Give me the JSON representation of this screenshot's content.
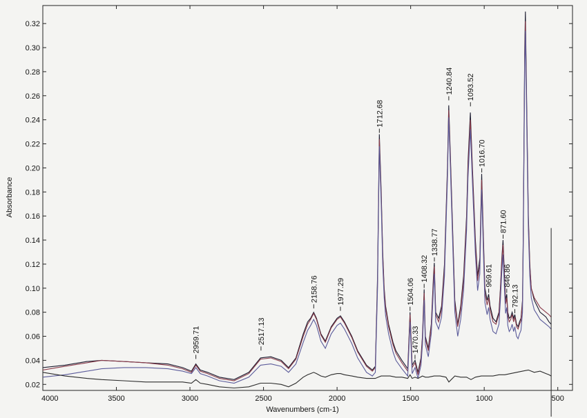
{
  "chart_data": {
    "type": "line",
    "title": "",
    "xlabel": "Wavenumbers (cm-1)",
    "ylabel": "Absorbance",
    "xlim": [
      4000,
      400
    ],
    "ylim": [
      0.015,
      0.335
    ],
    "x_reversed": true,
    "grid": false,
    "legend": "none",
    "x_ticks": [
      4000,
      3500,
      3000,
      2500,
      2000,
      1500,
      1000,
      500
    ],
    "x_tick_labels": [
      "4000",
      "3500",
      "3000",
      "2500",
      "2000",
      "1500",
      "1000",
      "500"
    ],
    "y_ticks": [
      0.02,
      0.04,
      0.06,
      0.08,
      0.1,
      0.12,
      0.14,
      0.16,
      0.18,
      0.2,
      0.22,
      0.24,
      0.26,
      0.28,
      0.3,
      0.32
    ],
    "y_tick_labels": [
      "0.02",
      "0.04",
      "0.06",
      "0.08",
      "0.10",
      "0.12",
      "0.14",
      "0.16",
      "0.18",
      "0.20",
      "0.22",
      "0.24",
      "0.26",
      "0.28",
      "0.30",
      "0.32"
    ],
    "peak_labels": [
      {
        "x": 2959.71,
        "text": "2959.71",
        "y": 0.04
      },
      {
        "x": 2517.13,
        "text": "2517.13",
        "y": 0.047
      },
      {
        "x": 2158.76,
        "text": "2158.76",
        "y": 0.082
      },
      {
        "x": 1977.29,
        "text": "1977.29",
        "y": 0.08
      },
      {
        "x": 1712.68,
        "text": "1712.68",
        "y": 0.228
      },
      {
        "x": 1504.06,
        "text": "1504.06",
        "y": 0.08
      },
      {
        "x": 1470.33,
        "text": "1470.33",
        "y": 0.04
      },
      {
        "x": 1408.32,
        "text": "1408.32",
        "y": 0.099
      },
      {
        "x": 1338.77,
        "text": "1338.77",
        "y": 0.121
      },
      {
        "x": 1240.84,
        "text": "1240.84",
        "y": 0.255
      },
      {
        "x": 1093.52,
        "text": "1093.52",
        "y": 0.25
      },
      {
        "x": 1016.7,
        "text": "1016.70",
        "y": 0.195
      },
      {
        "x": 969.61,
        "text": "969.61",
        "y": 0.095
      },
      {
        "x": 871.6,
        "text": "871.60",
        "y": 0.14
      },
      {
        "x": 846.86,
        "text": "846.86",
        "y": 0.095
      },
      {
        "x": 792.13,
        "text": "792.13",
        "y": 0.078
      }
    ],
    "series": [
      {
        "color": "#1a1a2e",
        "x": [
          4000,
          3850,
          3700,
          3600,
          3450,
          3300,
          3150,
          3050,
          2990,
          2960,
          2930,
          2880,
          2800,
          2700,
          2600,
          2520,
          2450,
          2380,
          2330,
          2280,
          2230,
          2200,
          2180,
          2159,
          2140,
          2110,
          2080,
          2040,
          2000,
          1977,
          1950,
          1900,
          1860,
          1800,
          1760,
          1740,
          1725,
          1713,
          1700,
          1690,
          1680,
          1670,
          1650,
          1620,
          1600,
          1560,
          1520,
          1504,
          1490,
          1470,
          1450,
          1430,
          1420,
          1408,
          1400,
          1380,
          1360,
          1345,
          1339,
          1330,
          1310,
          1290,
          1270,
          1250,
          1241,
          1230,
          1215,
          1200,
          1180,
          1160,
          1140,
          1120,
          1110,
          1094,
          1080,
          1060,
          1045,
          1030,
          1017,
          1005,
          995,
          980,
          970,
          960,
          940,
          920,
          900,
          890,
          880,
          872,
          862,
          855,
          847,
          840,
          830,
          820,
          810,
          800,
          792,
          780,
          770,
          760,
          750,
          740,
          735,
          730,
          725,
          720,
          710,
          700,
          690,
          680,
          660,
          640,
          620,
          600,
          580,
          560,
          545
        ],
        "y": [
          0.034,
          0.036,
          0.039,
          0.04,
          0.039,
          0.038,
          0.037,
          0.034,
          0.031,
          0.037,
          0.032,
          0.03,
          0.026,
          0.024,
          0.03,
          0.042,
          0.043,
          0.04,
          0.034,
          0.042,
          0.062,
          0.072,
          0.075,
          0.08,
          0.075,
          0.062,
          0.056,
          0.068,
          0.075,
          0.077,
          0.072,
          0.06,
          0.048,
          0.036,
          0.032,
          0.035,
          0.11,
          0.228,
          0.18,
          0.13,
          0.1,
          0.085,
          0.07,
          0.055,
          0.048,
          0.04,
          0.033,
          0.08,
          0.036,
          0.04,
          0.03,
          0.042,
          0.06,
          0.099,
          0.06,
          0.05,
          0.07,
          0.11,
          0.121,
          0.08,
          0.075,
          0.085,
          0.12,
          0.2,
          0.252,
          0.21,
          0.15,
          0.09,
          0.07,
          0.085,
          0.11,
          0.16,
          0.205,
          0.246,
          0.2,
          0.14,
          0.11,
          0.125,
          0.195,
          0.14,
          0.1,
          0.09,
          0.095,
          0.085,
          0.075,
          0.072,
          0.08,
          0.1,
          0.125,
          0.14,
          0.11,
          0.09,
          0.095,
          0.08,
          0.075,
          0.076,
          0.08,
          0.075,
          0.078,
          0.07,
          0.068,
          0.072,
          0.075,
          0.09,
          0.14,
          0.22,
          0.3,
          0.33,
          0.24,
          0.16,
          0.12,
          0.1,
          0.09,
          0.085,
          0.08,
          0.078,
          0.076,
          0.072,
          0.07
        ]
      },
      {
        "color": "#8a3a4a",
        "x": [
          4000,
          3850,
          3700,
          3600,
          3450,
          3300,
          3150,
          3050,
          2990,
          2960,
          2930,
          2880,
          2800,
          2700,
          2600,
          2520,
          2450,
          2380,
          2330,
          2280,
          2230,
          2200,
          2180,
          2159,
          2140,
          2110,
          2080,
          2040,
          2000,
          1977,
          1950,
          1900,
          1860,
          1800,
          1760,
          1740,
          1725,
          1713,
          1700,
          1690,
          1680,
          1670,
          1650,
          1620,
          1600,
          1560,
          1520,
          1504,
          1490,
          1470,
          1450,
          1430,
          1420,
          1408,
          1400,
          1380,
          1360,
          1345,
          1339,
          1330,
          1310,
          1290,
          1270,
          1250,
          1241,
          1230,
          1215,
          1200,
          1180,
          1160,
          1140,
          1120,
          1110,
          1094,
          1080,
          1060,
          1045,
          1030,
          1017,
          1005,
          995,
          980,
          970,
          960,
          940,
          920,
          900,
          890,
          880,
          872,
          862,
          855,
          847,
          840,
          830,
          820,
          810,
          800,
          792,
          780,
          770,
          760,
          750,
          740,
          735,
          730,
          725,
          720,
          710,
          700,
          690,
          680,
          660,
          640,
          620,
          600,
          580,
          560,
          545
        ],
        "y": [
          0.032,
          0.035,
          0.038,
          0.04,
          0.039,
          0.038,
          0.036,
          0.033,
          0.03,
          0.036,
          0.031,
          0.029,
          0.025,
          0.023,
          0.029,
          0.041,
          0.042,
          0.039,
          0.033,
          0.041,
          0.06,
          0.07,
          0.074,
          0.079,
          0.074,
          0.061,
          0.055,
          0.067,
          0.074,
          0.076,
          0.071,
          0.059,
          0.047,
          0.035,
          0.031,
          0.034,
          0.105,
          0.224,
          0.176,
          0.127,
          0.098,
          0.083,
          0.068,
          0.053,
          0.046,
          0.038,
          0.031,
          0.078,
          0.034,
          0.038,
          0.028,
          0.04,
          0.058,
          0.096,
          0.058,
          0.048,
          0.068,
          0.106,
          0.118,
          0.078,
          0.072,
          0.082,
          0.116,
          0.196,
          0.248,
          0.206,
          0.146,
          0.087,
          0.068,
          0.082,
          0.106,
          0.156,
          0.2,
          0.24,
          0.196,
          0.136,
          0.106,
          0.12,
          0.19,
          0.136,
          0.096,
          0.086,
          0.092,
          0.082,
          0.072,
          0.07,
          0.078,
          0.098,
          0.122,
          0.136,
          0.106,
          0.087,
          0.092,
          0.077,
          0.072,
          0.074,
          0.078,
          0.072,
          0.076,
          0.068,
          0.066,
          0.07,
          0.073,
          0.088,
          0.136,
          0.214,
          0.292,
          0.322,
          0.234,
          0.156,
          0.118,
          0.1,
          0.092,
          0.088,
          0.084,
          0.082,
          0.08,
          0.078,
          0.076
        ]
      },
      {
        "color": "#5a5a9a",
        "x": [
          4000,
          3850,
          3700,
          3600,
          3450,
          3300,
          3150,
          3050,
          2990,
          2960,
          2930,
          2880,
          2800,
          2700,
          2600,
          2520,
          2450,
          2380,
          2330,
          2280,
          2230,
          2200,
          2180,
          2159,
          2140,
          2110,
          2080,
          2040,
          2000,
          1977,
          1950,
          1900,
          1860,
          1800,
          1760,
          1740,
          1725,
          1713,
          1700,
          1690,
          1680,
          1670,
          1650,
          1620,
          1600,
          1560,
          1520,
          1504,
          1490,
          1470,
          1450,
          1430,
          1420,
          1408,
          1400,
          1380,
          1360,
          1345,
          1339,
          1330,
          1310,
          1290,
          1270,
          1250,
          1241,
          1230,
          1215,
          1200,
          1180,
          1160,
          1140,
          1120,
          1110,
          1094,
          1080,
          1060,
          1045,
          1030,
          1017,
          1005,
          995,
          980,
          970,
          960,
          940,
          920,
          900,
          890,
          880,
          872,
          862,
          855,
          847,
          840,
          830,
          820,
          810,
          800,
          792,
          780,
          770,
          760,
          750,
          740,
          735,
          730,
          725,
          720,
          710,
          700,
          690,
          680,
          660,
          640,
          620,
          600,
          580,
          560,
          545
        ],
        "y": [
          0.026,
          0.028,
          0.031,
          0.033,
          0.034,
          0.034,
          0.033,
          0.031,
          0.029,
          0.034,
          0.029,
          0.027,
          0.023,
          0.021,
          0.026,
          0.036,
          0.037,
          0.035,
          0.03,
          0.037,
          0.055,
          0.065,
          0.069,
          0.074,
          0.069,
          0.056,
          0.05,
          0.062,
          0.069,
          0.071,
          0.066,
          0.054,
          0.042,
          0.03,
          0.027,
          0.03,
          0.1,
          0.218,
          0.17,
          0.12,
          0.092,
          0.077,
          0.062,
          0.047,
          0.04,
          0.033,
          0.027,
          0.072,
          0.029,
          0.034,
          0.025,
          0.036,
          0.053,
          0.09,
          0.053,
          0.043,
          0.062,
          0.1,
          0.112,
          0.072,
          0.066,
          0.076,
          0.11,
          0.19,
          0.242,
          0.2,
          0.14,
          0.08,
          0.06,
          0.074,
          0.098,
          0.148,
          0.192,
          0.232,
          0.188,
          0.128,
          0.098,
          0.112,
          0.182,
          0.128,
          0.088,
          0.078,
          0.084,
          0.074,
          0.064,
          0.062,
          0.07,
          0.09,
          0.114,
          0.128,
          0.098,
          0.079,
          0.084,
          0.069,
          0.064,
          0.066,
          0.07,
          0.064,
          0.068,
          0.06,
          0.058,
          0.062,
          0.065,
          0.08,
          0.128,
          0.206,
          0.284,
          0.314,
          0.226,
          0.148,
          0.11,
          0.092,
          0.082,
          0.078,
          0.074,
          0.072,
          0.07,
          0.068,
          0.066
        ]
      },
      {
        "color": "#2a2a2a",
        "x": [
          4000,
          3850,
          3700,
          3600,
          3450,
          3300,
          3150,
          3050,
          2990,
          2960,
          2930,
          2880,
          2800,
          2700,
          2600,
          2520,
          2450,
          2380,
          2330,
          2280,
          2230,
          2200,
          2180,
          2159,
          2140,
          2110,
          2080,
          2040,
          2000,
          1977,
          1950,
          1900,
          1860,
          1800,
          1760,
          1740,
          1720,
          1700,
          1680,
          1640,
          1600,
          1560,
          1520,
          1504,
          1490,
          1470,
          1450,
          1420,
          1400,
          1380,
          1340,
          1300,
          1260,
          1240,
          1200,
          1160,
          1120,
          1090,
          1060,
          1020,
          980,
          940,
          900,
          860,
          820,
          780,
          740,
          700,
          660,
          620,
          580,
          560,
          545
        ],
        "y": [
          0.03,
          0.027,
          0.025,
          0.024,
          0.023,
          0.022,
          0.022,
          0.022,
          0.021,
          0.024,
          0.021,
          0.02,
          0.018,
          0.017,
          0.018,
          0.021,
          0.021,
          0.02,
          0.018,
          0.021,
          0.026,
          0.028,
          0.029,
          0.03,
          0.029,
          0.027,
          0.026,
          0.028,
          0.029,
          0.029,
          0.028,
          0.027,
          0.026,
          0.025,
          0.025,
          0.025,
          0.026,
          0.027,
          0.027,
          0.027,
          0.026,
          0.026,
          0.025,
          0.028,
          0.025,
          0.026,
          0.025,
          0.027,
          0.026,
          0.026,
          0.027,
          0.027,
          0.026,
          0.022,
          0.027,
          0.026,
          0.026,
          0.024,
          0.026,
          0.027,
          0.027,
          0.027,
          0.028,
          0.028,
          0.029,
          0.03,
          0.031,
          0.032,
          0.03,
          0.031,
          0.029,
          0.028,
          0.027
        ]
      }
    ]
  }
}
